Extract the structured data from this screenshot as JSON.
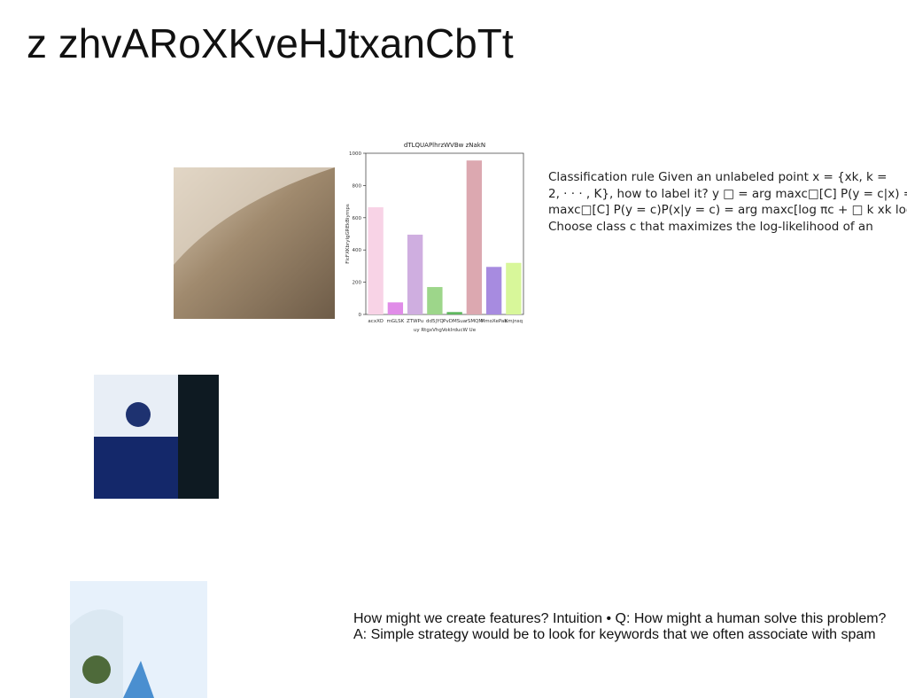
{
  "title": "z zhvARoXKveHJtxanCbTt",
  "chart_data": {
    "type": "bar",
    "title": "dTLQUAPlhrzWVBw zNakN",
    "x_label": "uy RtgxVhgVokIrducW Ue",
    "y_label": "FlcFXKbrylgGREkBiyrnps",
    "categories": [
      "acxXO",
      "mGLSK",
      "ZTWPu",
      "dd5jYQ",
      "PvDMSua",
      "rSMQM",
      "MmoXePab",
      "Kmjnsq"
    ],
    "values": [
      665,
      75,
      495,
      170,
      15,
      955,
      295,
      320
    ],
    "colors": [
      "#f8d3e6",
      "#e08ce8",
      "#cfaee0",
      "#9dd68a",
      "#5fb85f",
      "#dca8b0",
      "#a78be0",
      "#d8f79a"
    ],
    "ylim": [
      0,
      1000
    ],
    "yticks": [
      0,
      200,
      400,
      600,
      800,
      1000
    ]
  },
  "text_blocks": [
    {
      "lines": [
        "Classification rule Given an unlabeled point x = {xk, k =",
        "2, · · · , K}, how to label it? y □ = arg maxc□[C] P(y = c|x) =",
        "maxc□[C] P(y = c)P(x|y = c) = arg maxc[log πc + □ k xk log",
        "Choose class c that maximizes the log-likelihood of an"
      ]
    },
    {
      "lines": [
        "How might we create features? Intuition • Q: How might a human solve this problem?",
        "A: Simple strategy would be to look for keywords that we often associate with spam"
      ]
    }
  ]
}
